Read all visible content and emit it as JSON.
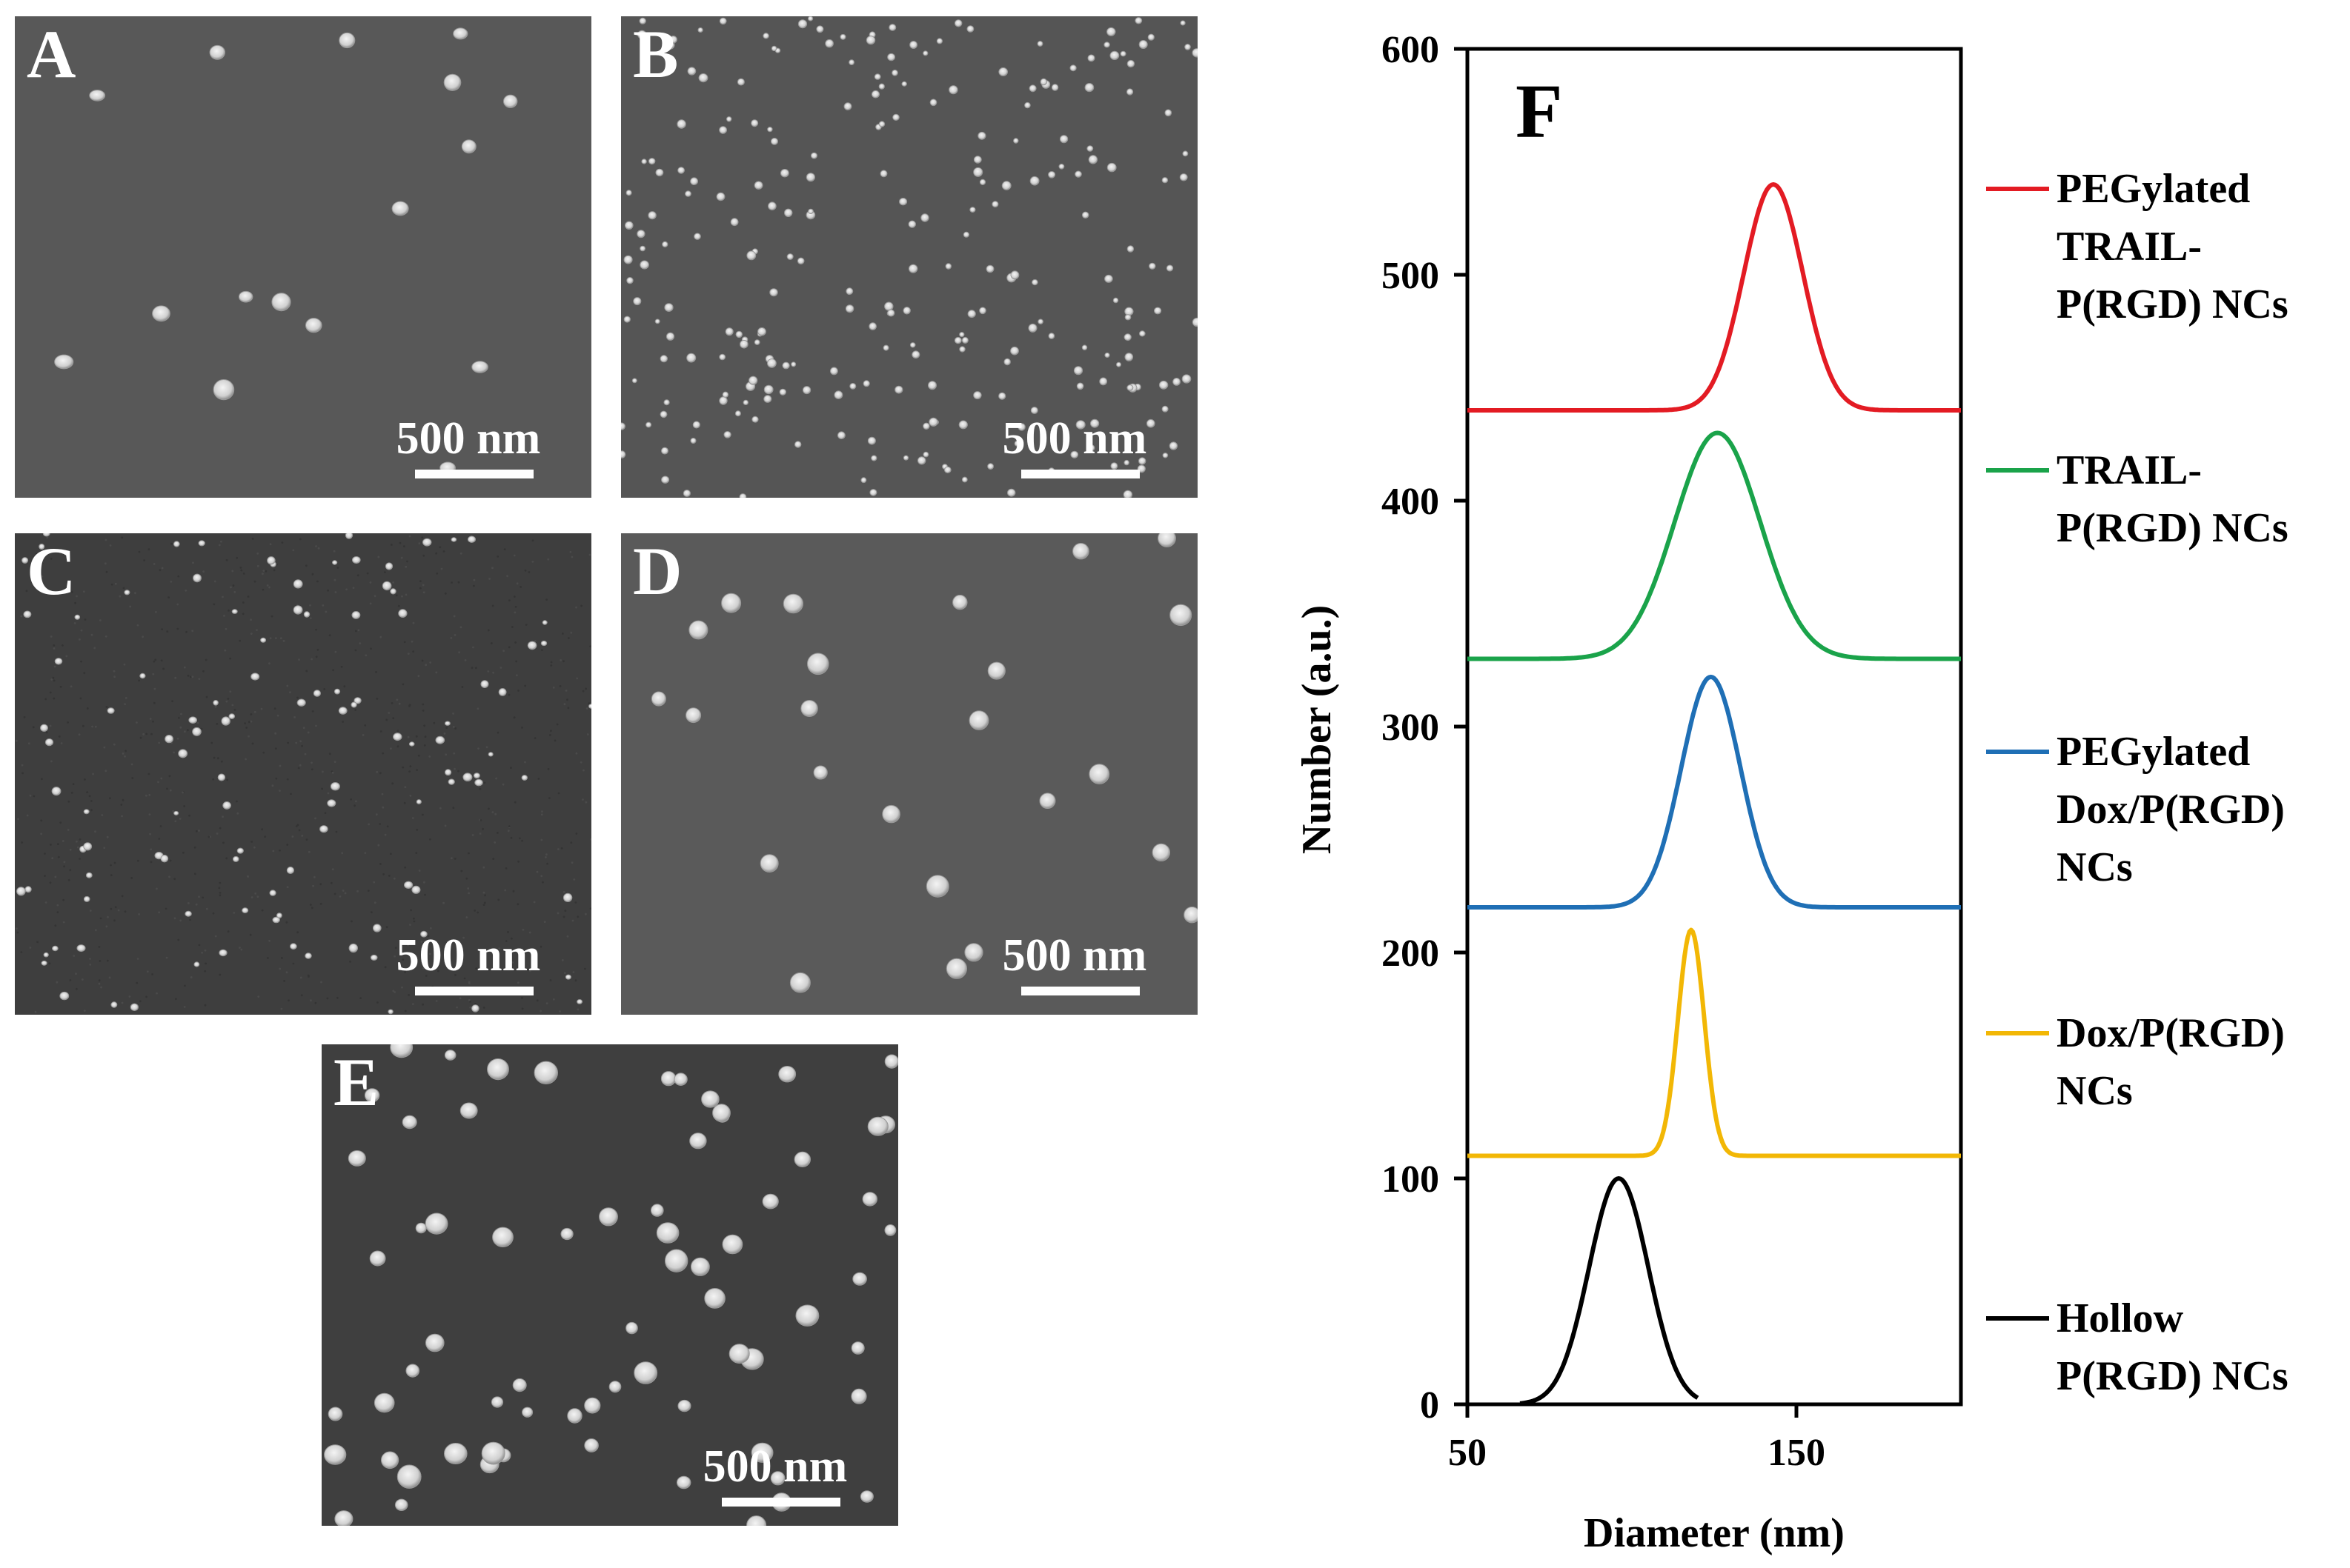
{
  "figure": {
    "panels": [
      {
        "label": "A",
        "scale_bar": "500 nm"
      },
      {
        "label": "B",
        "scale_bar": "500 nm"
      },
      {
        "label": "C",
        "scale_bar": "500 nm"
      },
      {
        "label": "D",
        "scale_bar": "500 nm"
      },
      {
        "label": "E",
        "scale_bar": "500 nm"
      }
    ],
    "chart_panel_label": "F"
  },
  "chart_data": {
    "type": "line",
    "title": "",
    "panel_label": "F",
    "xlabel": "Diameter (nm)",
    "ylabel": "Number (a.u.)",
    "xlim": [
      50,
      200
    ],
    "ylim": [
      0,
      600
    ],
    "xticks": [
      50,
      150
    ],
    "yticks": [
      0,
      100,
      200,
      300,
      400,
      500,
      600
    ],
    "legend_position": "right",
    "series": [
      {
        "name": "PEGylated TRAIL-P(RGD) NCs",
        "legend_lines": [
          "PEGylated",
          "TRAIL-",
          "P(RGD) NCs"
        ],
        "color": "#e31b23",
        "baseline": 440,
        "peak": 540,
        "center": 143,
        "sigma": 9,
        "x_start": 50,
        "x_end": 200
      },
      {
        "name": "TRAIL-P(RGD) NCs",
        "legend_lines": [
          "TRAIL-",
          "P(RGD) NCs"
        ],
        "color": "#1aa34a",
        "baseline": 330,
        "peak": 430,
        "center": 126,
        "sigma": 13,
        "x_start": 50,
        "x_end": 200
      },
      {
        "name": "PEGylated Dox/P(RGD) NCs",
        "legend_lines": [
          "PEGylated",
          "Dox/P(RGD)",
          "NCs"
        ],
        "color": "#1f6fb5",
        "baseline": 220,
        "peak": 322,
        "center": 124,
        "sigma": 9,
        "x_start": 50,
        "x_end": 200
      },
      {
        "name": "Dox/P(RGD) NCs",
        "legend_lines": [
          "Dox/P(RGD)",
          "NCs"
        ],
        "color": "#f2b705",
        "baseline": 110,
        "peak": 210,
        "center": 118,
        "sigma": 4,
        "x_start": 50,
        "x_end": 200
      },
      {
        "name": "Hollow P(RGD) NCs",
        "legend_lines": [
          "Hollow",
          "P(RGD) NCs"
        ],
        "color": "#000000",
        "baseline": 0,
        "peak": 100,
        "center": 96,
        "sigma": 9,
        "x_start": 66,
        "x_end": 120
      }
    ]
  }
}
